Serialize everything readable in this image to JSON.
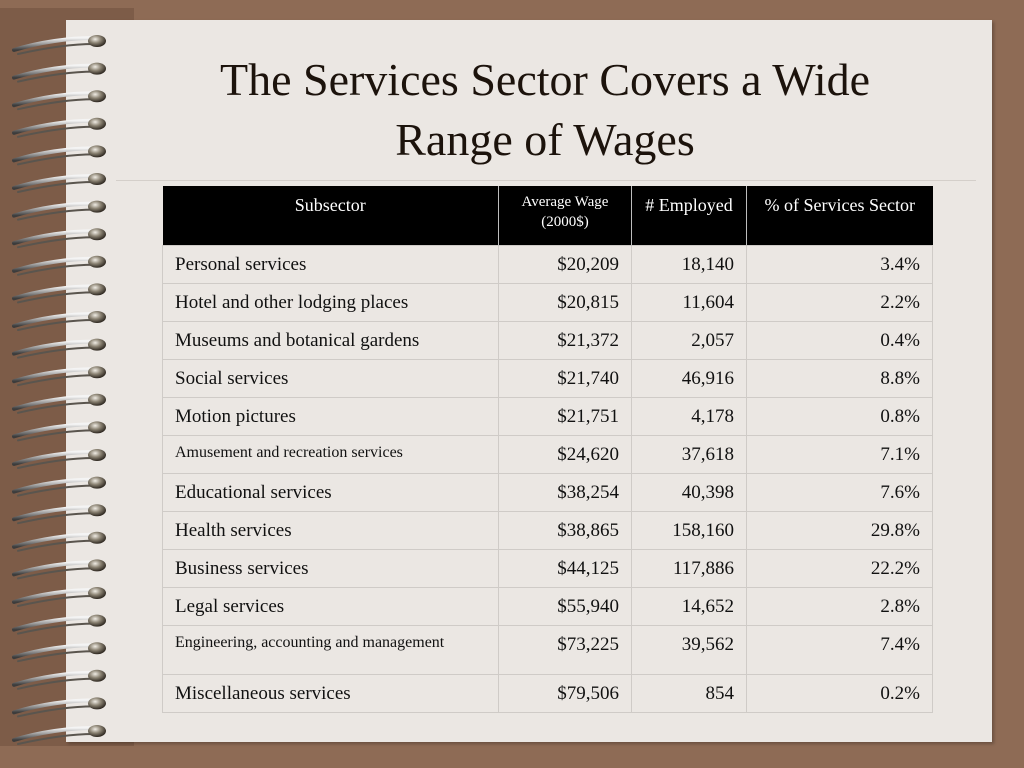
{
  "title_line1": "The Services Sector Covers a Wide",
  "title_line2": "Range of Wages",
  "table": {
    "headers": [
      "Subsector",
      "Average Wage (2000$)",
      "# Employed",
      "% of Services Sector"
    ],
    "rows": [
      {
        "subsector": "Personal services",
        "wage": "$20,209",
        "employed": "18,140",
        "pct": "3.4%"
      },
      {
        "subsector": "Hotel and other lodging places",
        "wage": "$20,815",
        "employed": "11,604",
        "pct": "2.2%"
      },
      {
        "subsector": "Museums and botanical gardens",
        "wage": "$21,372",
        "employed": "2,057",
        "pct": "0.4%"
      },
      {
        "subsector": "Social services",
        "wage": "$21,740",
        "employed": "46,916",
        "pct": "8.8%"
      },
      {
        "subsector": "Motion pictures",
        "wage": "$21,751",
        "employed": "4,178",
        "pct": "0.8%"
      },
      {
        "subsector": "Amusement and recreation services",
        "wage": "$24,620",
        "employed": "37,618",
        "pct": "7.1%"
      },
      {
        "subsector": "Educational services",
        "wage": "$38,254",
        "employed": "40,398",
        "pct": "7.6%"
      },
      {
        "subsector": "Health services",
        "wage": "$38,865",
        "employed": "158,160",
        "pct": "29.8%"
      },
      {
        "subsector": "Business services",
        "wage": "$44,125",
        "employed": "117,886",
        "pct": "22.2%"
      },
      {
        "subsector": "Legal services",
        "wage": "$55,940",
        "employed": "14,652",
        "pct": "2.8%"
      },
      {
        "subsector": "Engineering, accounting and management",
        "wage": "$73,225",
        "employed": "39,562",
        "pct": "7.4%"
      },
      {
        "subsector": "Miscellaneous services",
        "wage": "$79,506",
        "employed": "854",
        "pct": "0.2%"
      }
    ]
  }
}
